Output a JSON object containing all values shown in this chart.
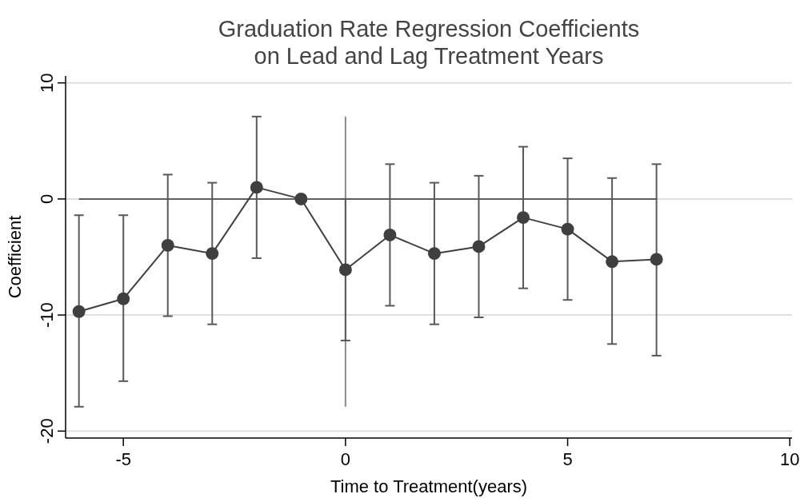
{
  "chart_data": {
    "type": "line",
    "title": "Graduation Rate Regression Coefficients\non Lead and Lag Treatment Years",
    "xlabel": "Time to Treatment(years)",
    "ylabel": "Coefficient",
    "x": [
      -6,
      -5,
      -4,
      -3,
      -2,
      -1,
      0,
      1,
      2,
      3,
      4,
      5,
      6,
      7
    ],
    "series": [
      {
        "color": "#3f3f3f",
        "values": [
          -9.7,
          -8.6,
          -4.0,
          -4.7,
          1.0,
          0,
          -6.1,
          -3.1,
          -4.7,
          -4.1,
          -1.6,
          -2.6,
          -5.4,
          -5.2
        ],
        "errors": [
          [
            -17.9,
            -1.4
          ],
          [
            -15.7,
            -1.4
          ],
          [
            -10.1,
            2.1
          ],
          [
            -10.8,
            1.4
          ],
          [
            -5.1,
            7.1
          ],
          null,
          [
            -12.2,
            0
          ],
          [
            -9.2,
            3.0
          ],
          [
            -10.8,
            1.4
          ],
          [
            -10.2,
            2.0
          ],
          [
            -7.7,
            4.5
          ],
          [
            -8.7,
            3.5
          ],
          [
            -12.5,
            1.8
          ],
          [
            -13.5,
            3.0
          ]
        ]
      }
    ],
    "ref_lines": [
      {
        "axis": "y",
        "value": 0,
        "color": "#5f5f5f"
      },
      {
        "axis": "x",
        "value": 0,
        "color": "#8c8c8c"
      }
    ],
    "xlim": [
      -6.3,
      10.05
    ],
    "ylim": [
      -20.6,
      10.6
    ],
    "xticks": [
      -5,
      0,
      5,
      10
    ],
    "yticks": [
      -20,
      -10,
      0,
      10
    ],
    "grid": "y",
    "marker": "circle",
    "line_style": "solid"
  }
}
